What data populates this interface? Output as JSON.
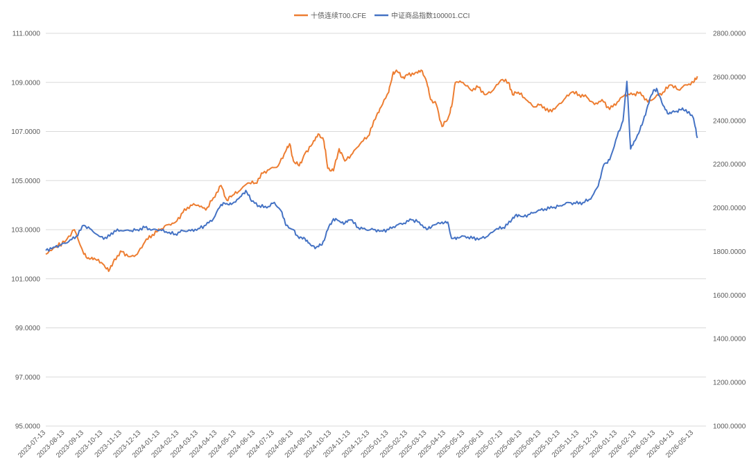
{
  "chart_data": {
    "type": "line",
    "title": "",
    "legend_position": "top-center",
    "grid": true,
    "left_axis": {
      "ylim": [
        95.0,
        111.0
      ],
      "tick_labels": [
        "95.0000",
        "97.0000",
        "99.0000",
        "101.0000",
        "103.0000",
        "105.0000",
        "107.0000",
        "109.0000",
        "111.0000"
      ]
    },
    "right_axis": {
      "ylim": [
        1000.0,
        2800.0
      ],
      "tick_labels": [
        "1000.0000",
        "1200.0000",
        "1400.0000",
        "1600.0000",
        "1800.0000",
        "2000.0000",
        "2200.0000",
        "2400.0000",
        "2600.0000",
        "2800.0000"
      ]
    },
    "x_tick_labels": [
      "2023-07-13",
      "2023-08-13",
      "2023-09-13",
      "2023-10-13",
      "2023-11-13",
      "2023-12-13",
      "2024-01-13",
      "2024-02-13",
      "2024-03-13",
      "2024-04-13",
      "2024-05-13",
      "2024-06-13",
      "2024-07-13",
      "2024-08-13",
      "2024-09-13",
      "2024-10-13",
      "2024-11-13",
      "2024-12-13",
      "2025-01-13",
      "2025-02-13",
      "2025-03-13",
      "2025-04-13",
      "2025-05-13",
      "2025-06-13",
      "2025-07-13",
      "2025-08-13",
      "2025-09-13",
      "2025-10-13",
      "2025-11-13",
      "2025-12-13",
      "2026-01-13",
      "2026-02-13",
      "2026-03-13",
      "2026-04-13",
      "2026-05-13"
    ],
    "series": [
      {
        "name": "十债连续T00.CFE",
        "axis": "left",
        "color": "#ED7D31",
        "points": [
          [
            0,
            102.0
          ],
          [
            0.5,
            102.3
          ],
          [
            1,
            102.5
          ],
          [
            1.5,
            103.0
          ],
          [
            2,
            102.0
          ],
          [
            2.3,
            101.8
          ],
          [
            2.6,
            101.8
          ],
          [
            3,
            101.6
          ],
          [
            3.3,
            101.3
          ],
          [
            3.6,
            101.8
          ],
          [
            4,
            102.1
          ],
          [
            4.4,
            101.9
          ],
          [
            4.8,
            102.0
          ],
          [
            5.2,
            102.5
          ],
          [
            5.6,
            102.8
          ],
          [
            6,
            103.0
          ],
          [
            6.4,
            103.2
          ],
          [
            6.8,
            103.3
          ],
          [
            7.2,
            103.7
          ],
          [
            7.6,
            104.0
          ],
          [
            8,
            104.0
          ],
          [
            8.4,
            103.8
          ],
          [
            8.8,
            104.3
          ],
          [
            9.2,
            104.8
          ],
          [
            9.5,
            104.2
          ],
          [
            9.8,
            104.4
          ],
          [
            10.2,
            104.6
          ],
          [
            10.6,
            104.9
          ],
          [
            11,
            104.9
          ],
          [
            11.4,
            105.3
          ],
          [
            11.8,
            105.5
          ],
          [
            12.2,
            105.6
          ],
          [
            12.6,
            106.2
          ],
          [
            12.8,
            106.5
          ],
          [
            13,
            105.8
          ],
          [
            13.3,
            105.6
          ],
          [
            13.6,
            106.1
          ],
          [
            14,
            106.5
          ],
          [
            14.3,
            106.9
          ],
          [
            14.6,
            106.6
          ],
          [
            14.8,
            105.5
          ],
          [
            15.1,
            105.4
          ],
          [
            15.4,
            106.3
          ],
          [
            15.7,
            105.8
          ],
          [
            16.1,
            106.1
          ],
          [
            16.5,
            106.5
          ],
          [
            16.9,
            106.8
          ],
          [
            17.3,
            107.5
          ],
          [
            17.6,
            108.0
          ],
          [
            18,
            108.6
          ],
          [
            18.2,
            109.3
          ],
          [
            18.4,
            109.5
          ],
          [
            18.7,
            109.2
          ],
          [
            19,
            109.3
          ],
          [
            19.4,
            109.4
          ],
          [
            19.7,
            109.5
          ],
          [
            20,
            109.0
          ],
          [
            20.2,
            108.3
          ],
          [
            20.5,
            108.1
          ],
          [
            20.8,
            107.2
          ],
          [
            21.1,
            107.5
          ],
          [
            21.3,
            108.0
          ],
          [
            21.5,
            109.0
          ],
          [
            21.9,
            109.0
          ],
          [
            22.3,
            108.7
          ],
          [
            22.7,
            108.8
          ],
          [
            23.1,
            108.5
          ],
          [
            23.5,
            108.7
          ],
          [
            23.9,
            109.1
          ],
          [
            24.3,
            109.0
          ],
          [
            24.5,
            108.5
          ],
          [
            24.8,
            108.6
          ],
          [
            25.2,
            108.3
          ],
          [
            25.6,
            108.0
          ],
          [
            26.0,
            108.1
          ],
          [
            26.4,
            107.8
          ],
          [
            26.8,
            108.0
          ],
          [
            27.2,
            108.3
          ],
          [
            27.6,
            108.6
          ],
          [
            28.0,
            108.5
          ],
          [
            28.4,
            108.4
          ],
          [
            28.8,
            108.1
          ],
          [
            29.2,
            108.3
          ],
          [
            29.6,
            107.9
          ],
          [
            30.0,
            108.2
          ],
          [
            30.4,
            108.5
          ],
          [
            30.8,
            108.5
          ],
          [
            31.2,
            108.6
          ],
          [
            31.6,
            108.2
          ],
          [
            32.0,
            108.4
          ],
          [
            32.4,
            108.6
          ],
          [
            32.8,
            108.9
          ],
          [
            33.2,
            108.7
          ],
          [
            33.6,
            108.9
          ],
          [
            34.0,
            109.0
          ],
          [
            34.2,
            109.25
          ]
        ]
      },
      {
        "name": "中证商品指数100001.CCI",
        "axis": "right",
        "color": "#4472C4",
        "points": [
          [
            0,
            1805
          ],
          [
            0.4,
            1820
          ],
          [
            0.8,
            1830
          ],
          [
            1.2,
            1845
          ],
          [
            1.6,
            1870
          ],
          [
            2.0,
            1920
          ],
          [
            2.4,
            1900
          ],
          [
            2.8,
            1870
          ],
          [
            3.2,
            1860
          ],
          [
            3.6,
            1895
          ],
          [
            4.0,
            1895
          ],
          [
            4.4,
            1895
          ],
          [
            4.8,
            1900
          ],
          [
            5.2,
            1910
          ],
          [
            5.6,
            1900
          ],
          [
            6.0,
            1900
          ],
          [
            6.4,
            1885
          ],
          [
            6.8,
            1880
          ],
          [
            7.2,
            1895
          ],
          [
            7.6,
            1895
          ],
          [
            8.0,
            1905
          ],
          [
            8.4,
            1920
          ],
          [
            8.8,
            1950
          ],
          [
            9.2,
            2015
          ],
          [
            9.5,
            2020
          ],
          [
            9.8,
            2020
          ],
          [
            10.2,
            2050
          ],
          [
            10.5,
            2080
          ],
          [
            10.8,
            2030
          ],
          [
            11.2,
            2010
          ],
          [
            11.6,
            2000
          ],
          [
            12.0,
            2025
          ],
          [
            12.4,
            1980
          ],
          [
            12.6,
            1920
          ],
          [
            13.0,
            1900
          ],
          [
            13.3,
            1860
          ],
          [
            13.6,
            1860
          ],
          [
            13.9,
            1830
          ],
          [
            14.2,
            1820
          ],
          [
            14.5,
            1830
          ],
          [
            14.8,
            1900
          ],
          [
            15.1,
            1950
          ],
          [
            15.4,
            1940
          ],
          [
            15.7,
            1930
          ],
          [
            16.0,
            1945
          ],
          [
            16.4,
            1910
          ],
          [
            16.8,
            1900
          ],
          [
            17.2,
            1900
          ],
          [
            17.6,
            1895
          ],
          [
            18.0,
            1900
          ],
          [
            18.4,
            1920
          ],
          [
            18.8,
            1930
          ],
          [
            19.2,
            1945
          ],
          [
            19.6,
            1935
          ],
          [
            20.0,
            1900
          ],
          [
            20.3,
            1920
          ],
          [
            20.8,
            1935
          ],
          [
            21.1,
            1935
          ],
          [
            21.3,
            1860
          ],
          [
            21.6,
            1865
          ],
          [
            22.0,
            1870
          ],
          [
            22.4,
            1860
          ],
          [
            22.8,
            1860
          ],
          [
            23.2,
            1870
          ],
          [
            23.6,
            1900
          ],
          [
            24.0,
            1910
          ],
          [
            24.4,
            1935
          ],
          [
            24.7,
            1970
          ],
          [
            25.0,
            1960
          ],
          [
            25.4,
            1970
          ],
          [
            25.8,
            1985
          ],
          [
            26.2,
            1995
          ],
          [
            26.6,
            2000
          ],
          [
            27.0,
            2010
          ],
          [
            27.4,
            2025
          ],
          [
            27.8,
            2020
          ],
          [
            28.2,
            2025
          ],
          [
            28.6,
            2040
          ],
          [
            29.0,
            2100
          ],
          [
            29.3,
            2200
          ],
          [
            29.6,
            2220
          ],
          [
            30.0,
            2330
          ],
          [
            30.3,
            2400
          ],
          [
            30.5,
            2580
          ],
          [
            30.7,
            2270
          ],
          [
            31.0,
            2320
          ],
          [
            31.3,
            2380
          ],
          [
            31.6,
            2470
          ],
          [
            31.9,
            2540
          ],
          [
            32.1,
            2540
          ],
          [
            32.4,
            2470
          ],
          [
            32.7,
            2430
          ],
          [
            33.0,
            2440
          ],
          [
            33.3,
            2450
          ],
          [
            33.6,
            2450
          ],
          [
            34.0,
            2410
          ],
          [
            34.2,
            2320
          ]
        ]
      }
    ]
  }
}
